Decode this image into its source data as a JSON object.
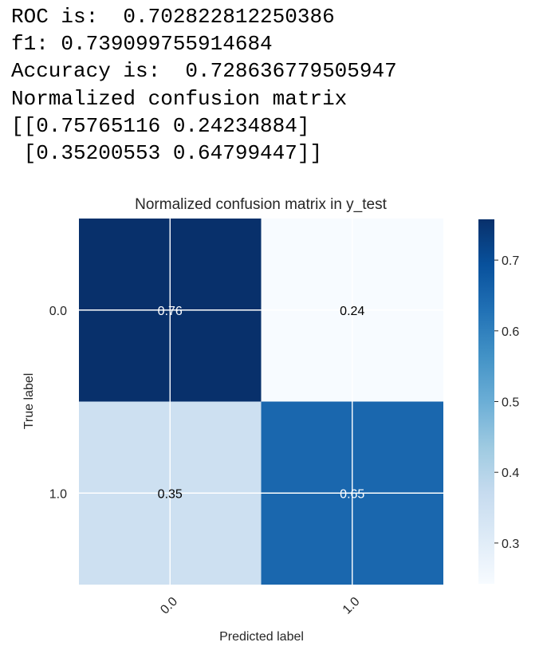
{
  "console": {
    "lines": [
      "ROC is:  0.702822812250386",
      "f1: 0.739099755914684",
      "Accuracy is:  0.728636779505947",
      "Normalized confusion matrix",
      "[[0.75765116 0.24234884]",
      " [0.35200553 0.64799447]]"
    ]
  },
  "chart_data": {
    "type": "heatmap",
    "title": "Normalized confusion matrix in y_test",
    "xlabel": "Predicted label",
    "ylabel": "True label",
    "x_categories": [
      "0.0",
      "1.0"
    ],
    "y_categories": [
      "0.0",
      "1.0"
    ],
    "values": [
      [
        0.75765116,
        0.24234884
      ],
      [
        0.35200553,
        0.64799447
      ]
    ],
    "cell_labels": [
      [
        "0.76",
        "0.24"
      ],
      [
        "0.35",
        "0.65"
      ]
    ],
    "colormap": "Blues",
    "color_range": [
      0.24234884,
      0.75765116
    ],
    "colorbar_ticks": [
      "0.7",
      "0.6",
      "0.5",
      "0.4",
      "0.3"
    ],
    "colorbar_tick_values": [
      0.7,
      0.6,
      0.5,
      0.4,
      0.3
    ],
    "grid": true,
    "colors": {
      "dark": "#08306b",
      "light": "#f7fbff",
      "grid": "#ffffff"
    }
  }
}
